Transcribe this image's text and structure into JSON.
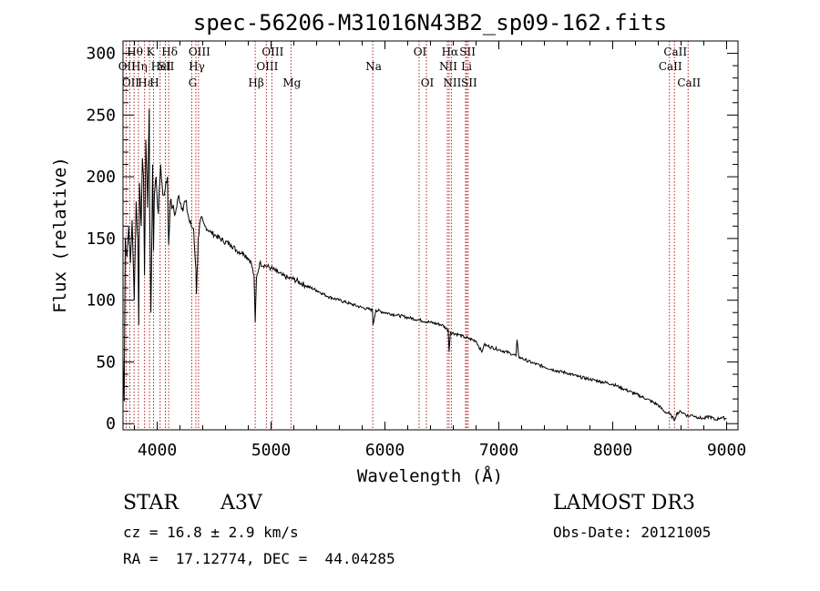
{
  "chart_data": {
    "type": "line",
    "title": "spec-56206-M31016N43B2_sp09-162.fits",
    "xlabel": "Wavelength (Å)",
    "ylabel": "Flux (relative)",
    "xlim": [
      3700,
      9100
    ],
    "ylim": [
      -5,
      310
    ],
    "xticks": [
      4000,
      5000,
      6000,
      7000,
      8000,
      9000
    ],
    "yticks": [
      0,
      50,
      100,
      150,
      200,
      250,
      300
    ],
    "series": [
      {
        "name": "spectrum",
        "x": [
          3700,
          3710,
          3720,
          3735,
          3750,
          3765,
          3780,
          3798,
          3815,
          3830,
          3838,
          3845,
          3860,
          3870,
          3880,
          3889,
          3900,
          3915,
          3930,
          3933,
          3945,
          3960,
          3968,
          3975,
          3990,
          4010,
          4030,
          4050,
          4070,
          4090,
          4101,
          4115,
          4135,
          4160,
          4190,
          4220,
          4250,
          4280,
          4300,
          4320,
          4340,
          4345,
          4360,
          4380,
          4420,
          4470,
          4520,
          4580,
          4650,
          4700,
          4760,
          4820,
          4850,
          4861,
          4872,
          4900,
          4950,
          5000,
          5050,
          5100,
          5150,
          5200,
          5300,
          5400,
          5500,
          5600,
          5700,
          5800,
          5890,
          5895,
          5920,
          6000,
          6100,
          6200,
          6300,
          6400,
          6500,
          6555,
          6563,
          6575,
          6650,
          6700,
          6800,
          6850,
          6870,
          6900,
          7000,
          7100,
          7150,
          7160,
          7175,
          7200,
          7300,
          7400,
          7500,
          7600,
          7700,
          7800,
          7900,
          8000,
          8100,
          8200,
          8300,
          8400,
          8450,
          8500,
          8542,
          8560,
          8600,
          8662,
          8700,
          8750,
          8800,
          8850,
          8900,
          8950,
          9000
        ],
        "values": [
          55,
          18,
          150,
          135,
          160,
          130,
          165,
          100,
          180,
          150,
          80,
          195,
          160,
          215,
          200,
          120,
          230,
          175,
          255,
          180,
          90,
          210,
          140,
          185,
          200,
          170,
          210,
          185,
          190,
          200,
          145,
          180,
          175,
          170,
          185,
          175,
          180,
          165,
          160,
          158,
          125,
          105,
          150,
          165,
          160,
          155,
          152,
          148,
          145,
          140,
          138,
          132,
          120,
          82,
          118,
          130,
          128,
          126,
          123,
          120,
          118,
          117,
          112,
          108,
          103,
          100,
          97,
          94,
          92,
          80,
          92,
          90,
          88,
          86,
          84,
          82,
          80,
          76,
          58,
          74,
          72,
          70,
          67,
          58,
          64,
          63,
          60,
          57,
          55,
          68,
          54,
          53,
          49,
          46,
          43,
          41,
          38,
          36,
          34,
          32,
          28,
          24,
          20,
          15,
          10,
          8,
          3,
          8,
          10,
          6,
          7,
          5,
          4,
          6,
          3,
          5,
          4
        ]
      }
    ],
    "lines": [
      {
        "wl": 3727,
        "label": "OII",
        "row": 2
      },
      {
        "wl": 3760,
        "label": "OII",
        "row": 3
      },
      {
        "wl": 3797,
        "label": "Hθ",
        "row": 1
      },
      {
        "wl": 3835,
        "label": "Hη",
        "row": 2
      },
      {
        "wl": 3889,
        "label": "Hε",
        "row": 3
      },
      {
        "wl": 3933,
        "label": "K",
        "row": 1
      },
      {
        "wl": 3968,
        "label": "H",
        "row": 3
      },
      {
        "wl": 4026,
        "label": "HeI",
        "row": 2
      },
      {
        "wl": 4072,
        "label": "SII",
        "row": 2
      },
      {
        "wl": 4101,
        "label": "Hδ",
        "row": 1
      },
      {
        "wl": 4304,
        "label": "G",
        "row": 3
      },
      {
        "wl": 4340,
        "label": "Hγ",
        "row": 2
      },
      {
        "wl": 4363,
        "label": "OIII",
        "row": 1
      },
      {
        "wl": 4861,
        "label": "Hβ",
        "row": 3
      },
      {
        "wl": 4959,
        "label": "OIII",
        "row": 2
      },
      {
        "wl": 5007,
        "label": "OIII",
        "row": 1
      },
      {
        "wl": 5175,
        "label": "Mg",
        "row": 3
      },
      {
        "wl": 5893,
        "label": "Na",
        "row": 2
      },
      {
        "wl": 6300,
        "label": "OI",
        "row": 1
      },
      {
        "wl": 6364,
        "label": "OI",
        "row": 3
      },
      {
        "wl": 6548,
        "label": "NII",
        "row": 2
      },
      {
        "wl": 6563,
        "label": "Hα",
        "row": 1
      },
      {
        "wl": 6583,
        "label": "NII",
        "row": 3
      },
      {
        "wl": 6708,
        "label": "Li",
        "row": 2
      },
      {
        "wl": 6717,
        "label": "SII",
        "row": 1
      },
      {
        "wl": 6731,
        "label": "SII",
        "row": 3
      },
      {
        "wl": 8498,
        "label": "CaII",
        "row": 2
      },
      {
        "wl": 8542,
        "label": "CaII",
        "row": 1
      },
      {
        "wl": 8662,
        "label": "CaII",
        "row": 3
      }
    ]
  },
  "info": {
    "class_label": "STAR",
    "subclass": "A3V",
    "survey": "LAMOST DR3",
    "cz": "cz = 16.8 ± 2.9 km/s",
    "obs_date": "Obs-Date: 20121005",
    "radec": "RA =  17.12774, DEC =  44.04285"
  }
}
